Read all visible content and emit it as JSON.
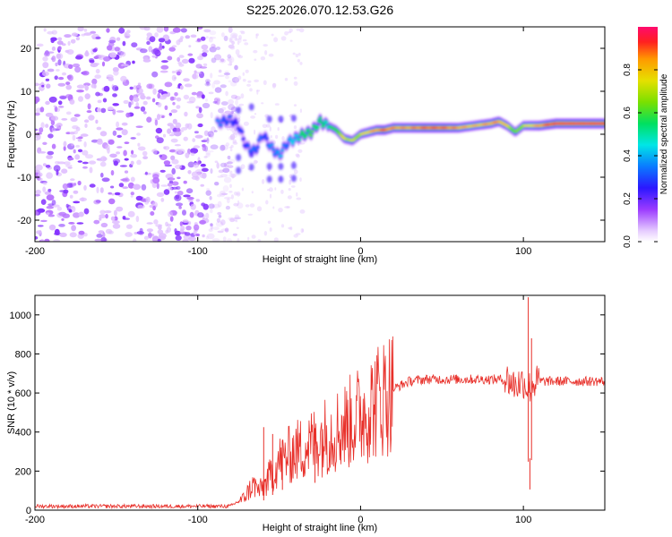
{
  "title": "S225.2026.070.12.53.G26",
  "chart_data": [
    {
      "type": "heatmap",
      "name": "spectrogram",
      "xlabel": "Height of straight line (km)",
      "ylabel": "Frequency (Hz)",
      "xlim": [
        -200,
        150
      ],
      "ylim": [
        -25,
        25
      ],
      "xticks": [
        -200,
        -100,
        0,
        100
      ],
      "yticks": [
        20,
        10,
        0,
        -10,
        -20
      ],
      "xtick_labels": [
        "-200",
        "-100",
        "0",
        "100"
      ],
      "ytick_labels": [
        "20",
        "10",
        "0",
        "-10",
        "-20"
      ],
      "colorbar": {
        "label": "Normalized spectral amplitude",
        "range": [
          0,
          1
        ],
        "ticks": [
          0.0,
          0.2,
          0.4,
          0.6,
          0.8
        ],
        "tick_labels": [
          "0.0",
          "0.2",
          "0.4",
          "0.6",
          "0.8"
        ]
      },
      "noise_region_x": [
        -200,
        -80
      ],
      "ridge": {
        "x": [
          -88,
          -80,
          -75,
          -70,
          -65,
          -60,
          -55,
          -50,
          -45,
          -40,
          -35,
          -30,
          -25,
          -20,
          -15,
          -10,
          -5,
          0,
          5,
          10,
          15,
          20,
          30,
          40,
          50,
          60,
          70,
          80,
          85,
          90,
          95,
          100,
          110,
          120,
          130,
          140,
          150
        ],
        "freq": [
          2.5,
          3.5,
          2,
          -3,
          -4,
          0,
          -3,
          -5,
          -2,
          -1,
          0,
          0.5,
          3,
          2,
          1,
          -1,
          -1.5,
          0,
          0.5,
          1,
          1,
          1.5,
          1.5,
          1.5,
          1.5,
          1.5,
          2,
          2.5,
          3,
          2,
          0.5,
          2,
          2,
          2.5,
          2.5,
          2.5,
          2.5
        ],
        "amplitude": [
          0.35,
          0.3,
          0.25,
          0.3,
          0.35,
          0.3,
          0.35,
          0.4,
          0.35,
          0.45,
          0.55,
          0.6,
          0.55,
          0.5,
          0.6,
          0.75,
          0.7,
          0.7,
          0.8,
          0.85,
          0.9,
          0.85,
          0.85,
          0.9,
          0.9,
          0.85,
          0.8,
          0.85,
          0.85,
          0.75,
          0.6,
          0.7,
          0.85,
          0.95,
          0.95,
          0.95,
          0.95
        ]
      }
    },
    {
      "type": "line",
      "name": "snr",
      "xlabel": "Height of straight line (km)",
      "ylabel": "SNR (10 * v/v)",
      "xlim": [
        -200,
        150
      ],
      "ylim": [
        0,
        1100
      ],
      "xticks": [
        -200,
        -100,
        0,
        100
      ],
      "yticks": [
        0,
        200,
        400,
        600,
        800,
        1000
      ],
      "xtick_labels": [
        "-200",
        "-100",
        "0",
        "100"
      ],
      "ytick_labels": [
        "0",
        "200",
        "400",
        "600",
        "800",
        "1000"
      ],
      "color": "#e8302a",
      "envelope": {
        "x": [
          -200,
          -80,
          -72,
          -66,
          -62,
          -58,
          -50,
          -40,
          -30,
          -20,
          -10,
          0,
          10,
          20,
          30,
          40,
          60,
          80,
          90,
          95,
          100,
          103,
          106,
          110,
          120,
          150
        ],
        "y": [
          20,
          20,
          60,
          130,
          100,
          140,
          250,
          300,
          340,
          390,
          430,
          490,
          560,
          620,
          660,
          670,
          670,
          670,
          670,
          640,
          660,
          620,
          650,
          660,
          660,
          660
        ]
      },
      "spikes": [
        {
          "x": -59.5,
          "y": 425
        },
        {
          "x": -54,
          "y": 390
        },
        {
          "x": -48,
          "y": 360
        },
        {
          "x": -28,
          "y": 420
        },
        {
          "x": 103,
          "y": 1090
        },
        {
          "x": 104,
          "y": 265
        },
        {
          "x": 105,
          "y": 880
        }
      ]
    }
  ]
}
